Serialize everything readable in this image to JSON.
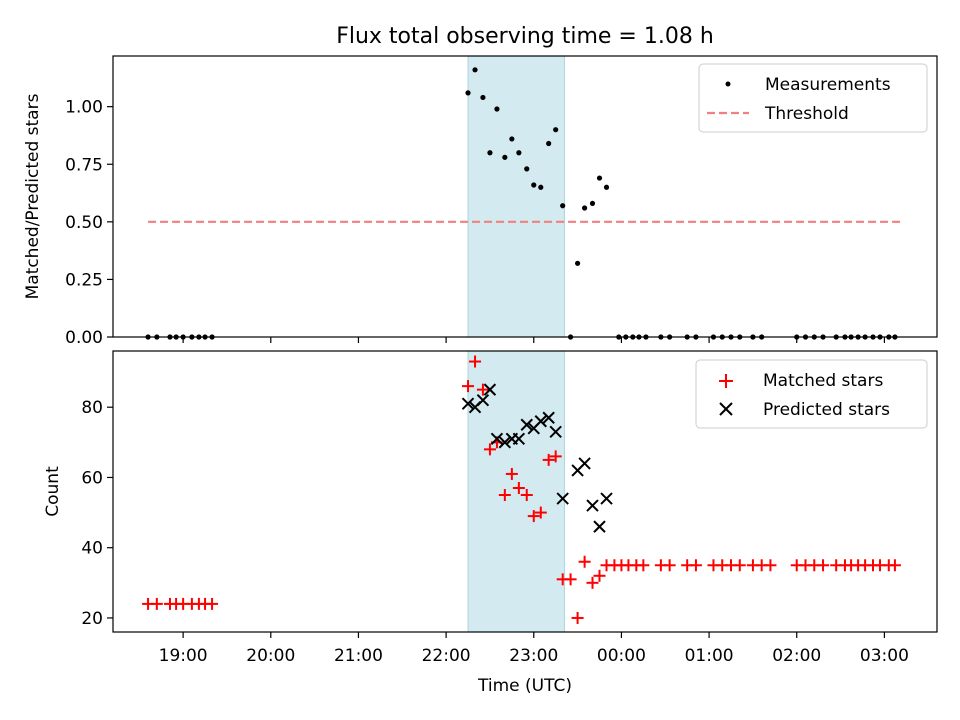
{
  "figure": {
    "title": "Flux total observing time = 1.08 h"
  },
  "chart_data": [
    {
      "type": "scatter",
      "panel": "top",
      "title": "Flux total observing time = 1.08 h",
      "xlabel": "",
      "ylabel": "Matched/Predicted stars",
      "x_unit": "hours since 00:00 UTC (values after midnight exceed 24)",
      "xlim": [
        18.2,
        27.6
      ],
      "ylim": [
        0,
        1.22
      ],
      "yticks": [
        0.0,
        0.25,
        0.5,
        0.75,
        1.0
      ],
      "ytick_labels": [
        "0.00",
        "0.25",
        "0.50",
        "0.75",
        "1.00"
      ],
      "legend": "top-right",
      "shaded_span": {
        "x0": 22.25,
        "x1": 23.35,
        "color": "#d4eaf1"
      },
      "threshold": {
        "name": "Threshold",
        "y": 0.5,
        "x0": 18.6,
        "x1": 27.2,
        "color": "#f08080"
      },
      "series": [
        {
          "name": "Measurements",
          "marker": "dot",
          "color": "#000000",
          "points": [
            [
              18.6,
              0
            ],
            [
              18.7,
              0
            ],
            [
              18.85,
              0
            ],
            [
              18.92,
              0
            ],
            [
              19.0,
              0
            ],
            [
              19.1,
              0
            ],
            [
              19.18,
              0
            ],
            [
              19.25,
              0
            ],
            [
              19.33,
              0
            ],
            [
              22.25,
              1.06
            ],
            [
              22.33,
              1.16
            ],
            [
              22.42,
              1.04
            ],
            [
              22.5,
              0.8
            ],
            [
              22.58,
              0.99
            ],
            [
              22.67,
              0.78
            ],
            [
              22.75,
              0.86
            ],
            [
              22.83,
              0.8
            ],
            [
              22.92,
              0.73
            ],
            [
              23.0,
              0.66
            ],
            [
              23.08,
              0.65
            ],
            [
              23.17,
              0.84
            ],
            [
              23.25,
              0.9
            ],
            [
              23.33,
              0.57
            ],
            [
              23.42,
              0
            ],
            [
              23.5,
              0.32
            ],
            [
              23.58,
              0.56
            ],
            [
              23.67,
              0.58
            ],
            [
              23.75,
              0.69
            ],
            [
              23.83,
              0.65
            ],
            [
              23.97,
              0
            ],
            [
              24.05,
              0
            ],
            [
              24.13,
              0
            ],
            [
              24.2,
              0
            ],
            [
              24.28,
              0
            ],
            [
              24.45,
              0
            ],
            [
              24.55,
              0
            ],
            [
              24.75,
              0
            ],
            [
              24.85,
              0
            ],
            [
              25.05,
              0
            ],
            [
              25.15,
              0
            ],
            [
              25.25,
              0
            ],
            [
              25.35,
              0
            ],
            [
              25.5,
              0
            ],
            [
              25.6,
              0
            ],
            [
              26.0,
              0
            ],
            [
              26.1,
              0
            ],
            [
              26.2,
              0
            ],
            [
              26.3,
              0
            ],
            [
              26.45,
              0
            ],
            [
              26.55,
              0
            ],
            [
              26.62,
              0
            ],
            [
              26.7,
              0
            ],
            [
              26.78,
              0
            ],
            [
              26.87,
              0
            ],
            [
              26.95,
              0
            ],
            [
              27.05,
              0
            ],
            [
              27.12,
              0
            ]
          ]
        }
      ]
    },
    {
      "type": "scatter",
      "panel": "bottom",
      "xlabel": "Time (UTC)",
      "ylabel": "Count",
      "x_unit": "hours since 00:00 UTC (values after midnight exceed 24)",
      "xlim": [
        18.2,
        27.6
      ],
      "ylim": [
        16,
        96
      ],
      "yticks": [
        20,
        40,
        60,
        80
      ],
      "ytick_labels": [
        "20",
        "40",
        "60",
        "80"
      ],
      "xticks": [
        19,
        20,
        21,
        22,
        23,
        24,
        25,
        26,
        27
      ],
      "xtick_labels": [
        "19:00",
        "20:00",
        "21:00",
        "22:00",
        "23:00",
        "00:00",
        "01:00",
        "02:00",
        "03:00"
      ],
      "legend": "top-right",
      "shaded_span": {
        "x0": 22.25,
        "x1": 23.35,
        "color": "#d4eaf1"
      },
      "series": [
        {
          "name": "Matched stars",
          "marker": "plus",
          "color": "#ff0000",
          "points": [
            [
              18.6,
              24
            ],
            [
              18.7,
              24
            ],
            [
              18.85,
              24
            ],
            [
              18.92,
              24
            ],
            [
              19.0,
              24
            ],
            [
              19.1,
              24
            ],
            [
              19.18,
              24
            ],
            [
              19.25,
              24
            ],
            [
              19.33,
              24
            ],
            [
              22.25,
              86
            ],
            [
              22.33,
              93
            ],
            [
              22.42,
              85
            ],
            [
              22.5,
              68
            ],
            [
              22.58,
              70
            ],
            [
              22.67,
              55
            ],
            [
              22.75,
              61
            ],
            [
              22.83,
              57
            ],
            [
              22.92,
              55
            ],
            [
              23.0,
              49
            ],
            [
              23.08,
              50
            ],
            [
              23.17,
              65
            ],
            [
              23.25,
              66
            ],
            [
              23.33,
              31
            ],
            [
              23.42,
              31
            ],
            [
              23.5,
              20
            ],
            [
              23.58,
              36
            ],
            [
              23.67,
              30
            ],
            [
              23.75,
              32
            ],
            [
              23.83,
              35
            ],
            [
              23.92,
              35
            ],
            [
              24.0,
              35
            ],
            [
              24.08,
              35
            ],
            [
              24.17,
              35
            ],
            [
              24.25,
              35
            ],
            [
              24.45,
              35
            ],
            [
              24.55,
              35
            ],
            [
              24.75,
              35
            ],
            [
              24.85,
              35
            ],
            [
              25.05,
              35
            ],
            [
              25.15,
              35
            ],
            [
              25.25,
              35
            ],
            [
              25.35,
              35
            ],
            [
              25.5,
              35
            ],
            [
              25.6,
              35
            ],
            [
              25.7,
              35
            ],
            [
              26.0,
              35
            ],
            [
              26.1,
              35
            ],
            [
              26.2,
              35
            ],
            [
              26.3,
              35
            ],
            [
              26.45,
              35
            ],
            [
              26.55,
              35
            ],
            [
              26.62,
              35
            ],
            [
              26.7,
              35
            ],
            [
              26.78,
              35
            ],
            [
              26.87,
              35
            ],
            [
              26.95,
              35
            ],
            [
              27.05,
              35
            ],
            [
              27.12,
              35
            ]
          ]
        },
        {
          "name": "Predicted stars",
          "marker": "x",
          "color": "#000000",
          "points": [
            [
              22.25,
              81
            ],
            [
              22.33,
              80
            ],
            [
              22.42,
              82
            ],
            [
              22.5,
              85
            ],
            [
              22.58,
              71
            ],
            [
              22.67,
              70
            ],
            [
              22.75,
              71
            ],
            [
              22.83,
              71
            ],
            [
              22.92,
              75
            ],
            [
              23.0,
              74
            ],
            [
              23.08,
              76
            ],
            [
              23.17,
              77
            ],
            [
              23.25,
              73
            ],
            [
              23.33,
              54
            ],
            [
              23.5,
              62
            ],
            [
              23.58,
              64
            ],
            [
              23.67,
              52
            ],
            [
              23.75,
              46
            ],
            [
              23.83,
              54
            ]
          ]
        }
      ]
    }
  ]
}
